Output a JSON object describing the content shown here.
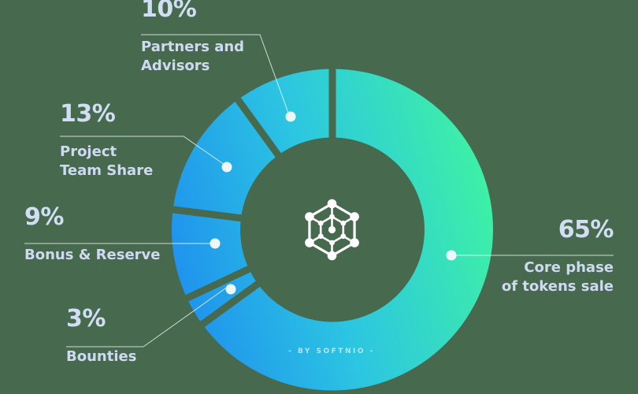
{
  "background_color": "#476A4E",
  "chart_data": {
    "type": "donut",
    "title": "",
    "watermark": "- BY SOFTNIO -",
    "center_icon": "hexagon-network-logo",
    "unit": "%",
    "start_angle_deg": 0,
    "direction": "clockwise",
    "total": 100,
    "slices_clockwise_from_top": [
      {
        "label": "Core phase of tokens sale",
        "value": 65
      },
      {
        "label": "Bounties",
        "value": 3
      },
      {
        "label": "Bonus & Reserve",
        "value": 9
      },
      {
        "label": "Project Team Share",
        "value": 13
      },
      {
        "label": "Partners and Advisors",
        "value": 10
      }
    ],
    "callouts": [
      {
        "pct_label": "10%",
        "label": "Partners and\nAdvisors",
        "align": "left"
      },
      {
        "pct_label": "13%",
        "label": "Project\nTeam Share",
        "align": "left"
      },
      {
        "pct_label": "9%",
        "label": "Bonus & Reserve",
        "align": "left"
      },
      {
        "pct_label": "3%",
        "label": "Bounties",
        "align": "left"
      },
      {
        "pct_label": "65%",
        "label": "Core phase\nof tokens sale",
        "align": "right"
      }
    ],
    "colors": {
      "background": "#476A4E",
      "gradient_stops": [
        "#1E90EE",
        "#2CC5E2",
        "#3DF0A6"
      ],
      "text": "#D2DEF4",
      "leader_line": "rgba(255,255,255,0.75)",
      "dot": "#EDF6F9",
      "logo": "#FFFFFF"
    }
  }
}
